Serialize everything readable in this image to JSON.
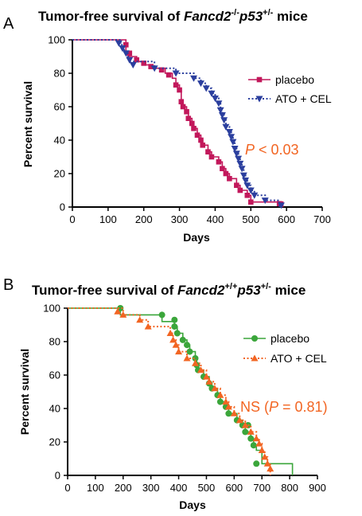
{
  "colors": {
    "placebo_A": "#C2185B",
    "treated_A": "#2B3F9E",
    "placebo_B": "#3BA63B",
    "treated_B": "#F26522",
    "pvalue": "#F26522"
  },
  "chart_data": [
    {
      "type": "line",
      "panel_label": "A",
      "title": {
        "prefix": "Tumor-free survival of ",
        "gene": "Fancd2",
        "gene_sup": "-/-",
        "gene2": "p53",
        "gene2_sup": "+/-",
        "suffix": " mice"
      },
      "xlabel": "Days",
      "ylabel": "Percent survival",
      "xlim": [
        0,
        700
      ],
      "ylim": [
        0,
        100
      ],
      "xticks": [
        "0",
        "100",
        "200",
        "300",
        "400",
        "500",
        "600",
        "700"
      ],
      "yticks": [
        "0",
        "20",
        "40",
        "60",
        "80",
        "100"
      ],
      "legend_position": "right",
      "pvalue": {
        "italic": "P",
        "rest": " < 0.03"
      },
      "series": [
        {
          "name": "placebo",
          "marker": "square",
          "line": "solid",
          "color": "#C2185B",
          "steps": [
            [
              0,
              100
            ],
            [
              150,
              100
            ],
            [
              150,
              93
            ],
            [
              160,
              90
            ],
            [
              180,
              87
            ],
            [
              200,
              85
            ],
            [
              220,
              83
            ],
            [
              260,
              80
            ],
            [
              280,
              77
            ],
            [
              290,
              73
            ],
            [
              300,
              70
            ],
            [
              305,
              63
            ],
            [
              310,
              60
            ],
            [
              320,
              57
            ],
            [
              325,
              53
            ],
            [
              335,
              50
            ],
            [
              340,
              47
            ],
            [
              350,
              43
            ],
            [
              360,
              40
            ],
            [
              365,
              37
            ],
            [
              380,
              33
            ],
            [
              390,
              30
            ],
            [
              410,
              27
            ],
            [
              420,
              23
            ],
            [
              430,
              20
            ],
            [
              440,
              17
            ],
            [
              460,
              13
            ],
            [
              470,
              10
            ],
            [
              490,
              7
            ],
            [
              500,
              3
            ],
            [
              590,
              3
            ],
            [
              590,
              0
            ]
          ],
          "markers": [
            [
              150,
              97
            ],
            [
              160,
              92
            ],
            [
              180,
              88
            ],
            [
              200,
              86
            ],
            [
              220,
              84
            ],
            [
              250,
              82
            ],
            [
              270,
              79
            ],
            [
              290,
              73
            ],
            [
              300,
              70
            ],
            [
              305,
              63
            ],
            [
              310,
              60
            ],
            [
              320,
              57
            ],
            [
              325,
              53
            ],
            [
              335,
              50
            ],
            [
              340,
              47
            ],
            [
              350,
              43
            ],
            [
              360,
              40
            ],
            [
              365,
              37
            ],
            [
              380,
              33
            ],
            [
              390,
              30
            ],
            [
              410,
              27
            ],
            [
              420,
              23
            ],
            [
              430,
              20
            ],
            [
              440,
              17
            ],
            [
              460,
              13
            ],
            [
              470,
              10
            ],
            [
              490,
              7
            ],
            [
              500,
              3
            ],
            [
              580,
              2
            ]
          ]
        },
        {
          "name": "ATO + CEL",
          "marker": "triangle-down",
          "line": "dotted",
          "color": "#2B3F9E",
          "steps": [
            [
              0,
              100
            ],
            [
              135,
              100
            ],
            [
              135,
              97
            ],
            [
              145,
              93
            ],
            [
              155,
              90
            ],
            [
              160,
              87
            ],
            [
              230,
              83
            ],
            [
              290,
              80
            ],
            [
              340,
              77
            ],
            [
              360,
              74
            ],
            [
              375,
              71
            ],
            [
              390,
              68
            ],
            [
              400,
              65
            ],
            [
              410,
              62
            ],
            [
              415,
              58
            ],
            [
              420,
              55
            ],
            [
              425,
              52
            ],
            [
              430,
              48
            ],
            [
              440,
              45
            ],
            [
              445,
              42
            ],
            [
              450,
              39
            ],
            [
              455,
              35
            ],
            [
              460,
              32
            ],
            [
              465,
              29
            ],
            [
              470,
              26
            ],
            [
              475,
              23
            ],
            [
              480,
              19
            ],
            [
              485,
              16
            ],
            [
              490,
              13
            ],
            [
              500,
              10
            ],
            [
              510,
              7
            ],
            [
              540,
              4
            ],
            [
              580,
              4
            ],
            [
              580,
              0
            ]
          ],
          "markers": [
            [
              130,
              98
            ],
            [
              140,
              95
            ],
            [
              150,
              92
            ],
            [
              160,
              88
            ],
            [
              170,
              85
            ],
            [
              230,
              83
            ],
            [
              290,
              80
            ],
            [
              340,
              77
            ],
            [
              360,
              74
            ],
            [
              375,
              71
            ],
            [
              390,
              68
            ],
            [
              400,
              65
            ],
            [
              410,
              62
            ],
            [
              415,
              58
            ],
            [
              420,
              55
            ],
            [
              425,
              52
            ],
            [
              430,
              48
            ],
            [
              440,
              45
            ],
            [
              445,
              42
            ],
            [
              450,
              39
            ],
            [
              455,
              35
            ],
            [
              460,
              32
            ],
            [
              465,
              29
            ],
            [
              470,
              26
            ],
            [
              475,
              23
            ],
            [
              480,
              19
            ],
            [
              485,
              16
            ],
            [
              490,
              13
            ],
            [
              500,
              10
            ],
            [
              510,
              7
            ],
            [
              540,
              4
            ],
            [
              585,
              1
            ]
          ]
        }
      ]
    },
    {
      "type": "line",
      "panel_label": "B",
      "title": {
        "prefix": "Tumor-free survival of ",
        "gene": "Fancd2",
        "gene_sup": "+/+",
        "gene2": "p53",
        "gene2_sup": "+/-",
        "suffix": " mice"
      },
      "xlabel": "Days",
      "ylabel": "Percent survival",
      "xlim": [
        0,
        900
      ],
      "ylim": [
        0,
        100
      ],
      "xticks": [
        "0",
        "100",
        "200",
        "300",
        "400",
        "500",
        "600",
        "700",
        "800",
        "900"
      ],
      "yticks": [
        "0",
        "20",
        "40",
        "60",
        "80",
        "100"
      ],
      "legend_position": "right",
      "pvalue": {
        "pre": "NS (",
        "italic": "P",
        "rest": " = 0.81)"
      },
      "series": [
        {
          "name": "placebo",
          "marker": "circle",
          "line": "solid",
          "color": "#3BA63B",
          "steps": [
            [
              0,
              100
            ],
            [
              190,
              100
            ],
            [
              190,
              96
            ],
            [
              340,
              96
            ],
            [
              340,
              92
            ],
            [
              385,
              89
            ],
            [
              395,
              85
            ],
            [
              415,
              81
            ],
            [
              430,
              78
            ],
            [
              440,
              74
            ],
            [
              460,
              70
            ],
            [
              465,
              66
            ],
            [
              470,
              63
            ],
            [
              490,
              59
            ],
            [
              510,
              55
            ],
            [
              520,
              52
            ],
            [
              540,
              48
            ],
            [
              550,
              44
            ],
            [
              570,
              41
            ],
            [
              580,
              37
            ],
            [
              610,
              33
            ],
            [
              630,
              30
            ],
            [
              640,
              26
            ],
            [
              660,
              22
            ],
            [
              670,
              18
            ],
            [
              680,
              15
            ],
            [
              700,
              7
            ],
            [
              810,
              7
            ],
            [
              810,
              0
            ]
          ],
          "markers": [
            [
              190,
              100
            ],
            [
              340,
              96
            ],
            [
              385,
              93
            ],
            [
              385,
              89
            ],
            [
              395,
              85
            ],
            [
              415,
              81
            ],
            [
              430,
              78
            ],
            [
              440,
              74
            ],
            [
              460,
              70
            ],
            [
              465,
              66
            ],
            [
              470,
              63
            ],
            [
              490,
              59
            ],
            [
              510,
              55
            ],
            [
              520,
              52
            ],
            [
              540,
              48
            ],
            [
              550,
              44
            ],
            [
              570,
              41
            ],
            [
              580,
              37
            ],
            [
              610,
              33
            ],
            [
              630,
              30
            ],
            [
              650,
              30
            ],
            [
              640,
              26
            ],
            [
              660,
              22
            ],
            [
              670,
              18
            ],
            [
              680,
              7
            ]
          ]
        },
        {
          "name": "ATO + CEL",
          "marker": "triangle-up",
          "line": "dotted",
          "color": "#F26522",
          "steps": [
            [
              0,
              100
            ],
            [
              180,
              100
            ],
            [
              200,
              96
            ],
            [
              260,
              93
            ],
            [
              290,
              89
            ],
            [
              370,
              85
            ],
            [
              380,
              81
            ],
            [
              390,
              78
            ],
            [
              400,
              74
            ],
            [
              430,
              70
            ],
            [
              460,
              67
            ],
            [
              480,
              63
            ],
            [
              500,
              59
            ],
            [
              510,
              56
            ],
            [
              530,
              52
            ],
            [
              550,
              48
            ],
            [
              570,
              44
            ],
            [
              580,
              41
            ],
            [
              600,
              37
            ],
            [
              620,
              33
            ],
            [
              640,
              30
            ],
            [
              660,
              26
            ],
            [
              680,
              22
            ],
            [
              690,
              19
            ],
            [
              700,
              15
            ],
            [
              710,
              11
            ],
            [
              720,
              7
            ],
            [
              730,
              4
            ],
            [
              730,
              0
            ]
          ],
          "markers": [
            [
              180,
              98
            ],
            [
              200,
              96
            ],
            [
              260,
              93
            ],
            [
              290,
              89
            ],
            [
              370,
              85
            ],
            [
              380,
              81
            ],
            [
              390,
              78
            ],
            [
              400,
              74
            ],
            [
              430,
              70
            ],
            [
              460,
              67
            ],
            [
              480,
              63
            ],
            [
              500,
              59
            ],
            [
              510,
              56
            ],
            [
              530,
              52
            ],
            [
              550,
              48
            ],
            [
              570,
              44
            ],
            [
              580,
              41
            ],
            [
              600,
              37
            ],
            [
              620,
              33
            ],
            [
              640,
              30
            ],
            [
              660,
              26
            ],
            [
              680,
              22
            ],
            [
              690,
              19
            ],
            [
              700,
              15
            ],
            [
              710,
              11
            ],
            [
              720,
              7
            ],
            [
              730,
              4
            ]
          ]
        }
      ]
    }
  ]
}
